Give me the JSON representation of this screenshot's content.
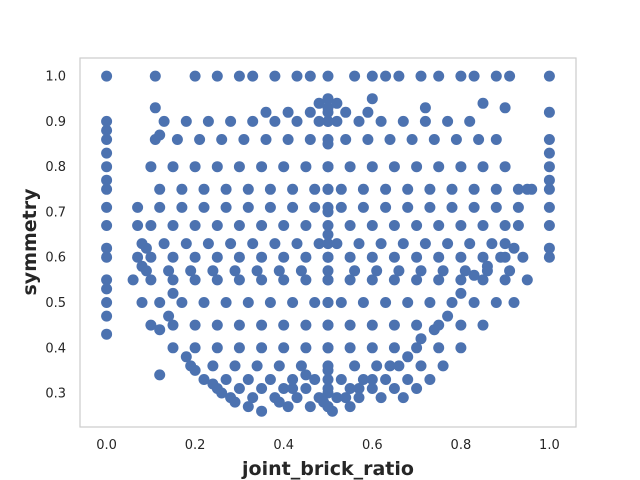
{
  "chart_data": {
    "type": "scatter",
    "title": "",
    "xlabel": "joint_brick_ratio",
    "ylabel": "symmetry",
    "xlim": [
      -0.06,
      1.06
    ],
    "ylim": [
      0.225,
      1.04
    ],
    "x_ticks": [
      0.0,
      0.2,
      0.4,
      0.6,
      0.8,
      1.0
    ],
    "x_tick_labels": [
      "0.0",
      "0.2",
      "0.4",
      "0.6",
      "0.8",
      "1.0"
    ],
    "y_ticks": [
      0.3,
      0.4,
      0.5,
      0.6,
      0.7,
      0.8,
      0.9,
      1.0
    ],
    "y_tick_labels": [
      "0.3",
      "0.4",
      "0.5",
      "0.6",
      "0.7",
      "0.8",
      "0.9",
      "1.0"
    ],
    "grid": false,
    "legend": "none",
    "colors": {
      "series": "#4c72b0",
      "frame": "#cccccc"
    },
    "series": [
      {
        "x": [
          0.0,
          0.0,
          0.0,
          0.0,
          0.0,
          0.0,
          0.0,
          0.0,
          0.0,
          0.0,
          0.0,
          0.0,
          0.0,
          0.0,
          0.0,
          0.0,
          0.0,
          1.0,
          1.0,
          1.0,
          1.0,
          1.0,
          1.0,
          1.0,
          1.0,
          1.0,
          1.0,
          1.0,
          0.11,
          0.2,
          0.25,
          0.3,
          0.33,
          0.38,
          0.43,
          0.46,
          0.5,
          0.56,
          0.6,
          0.63,
          0.66,
          0.71,
          0.75,
          0.8,
          0.83,
          0.88,
          0.91,
          0.07,
          0.1,
          0.15,
          0.2,
          0.25,
          0.3,
          0.35,
          0.4,
          0.45,
          0.5,
          0.55,
          0.6,
          0.65,
          0.7,
          0.75,
          0.8,
          0.85,
          0.9,
          0.93,
          0.07,
          0.1,
          0.15,
          0.2,
          0.25,
          0.3,
          0.35,
          0.4,
          0.45,
          0.5,
          0.55,
          0.6,
          0.65,
          0.7,
          0.75,
          0.8,
          0.85,
          0.9,
          0.94,
          0.12,
          0.17,
          0.22,
          0.27,
          0.32,
          0.37,
          0.42,
          0.47,
          0.5,
          0.53,
          0.58,
          0.63,
          0.68,
          0.73,
          0.78,
          0.83,
          0.88,
          0.93,
          0.96,
          0.1,
          0.15,
          0.2,
          0.25,
          0.3,
          0.35,
          0.4,
          0.45,
          0.5,
          0.55,
          0.6,
          0.65,
          0.7,
          0.75,
          0.8,
          0.85,
          0.9,
          0.06,
          0.1,
          0.15,
          0.2,
          0.25,
          0.3,
          0.35,
          0.4,
          0.45,
          0.5,
          0.55,
          0.6,
          0.65,
          0.7,
          0.75,
          0.8,
          0.85,
          0.9,
          0.95,
          0.08,
          0.12,
          0.17,
          0.22,
          0.27,
          0.32,
          0.37,
          0.42,
          0.47,
          0.5,
          0.53,
          0.58,
          0.63,
          0.68,
          0.73,
          0.78,
          0.83,
          0.88,
          0.92,
          0.07,
          0.12,
          0.17,
          0.22,
          0.27,
          0.32,
          0.37,
          0.42,
          0.47,
          0.5,
          0.53,
          0.58,
          0.63,
          0.68,
          0.73,
          0.78,
          0.83,
          0.88,
          0.93,
          0.09,
          0.14,
          0.19,
          0.24,
          0.29,
          0.34,
          0.39,
          0.44,
          0.5,
          0.56,
          0.61,
          0.66,
          0.71,
          0.76,
          0.81,
          0.86,
          0.91,
          0.08,
          0.13,
          0.18,
          0.23,
          0.28,
          0.33,
          0.38,
          0.43,
          0.48,
          0.5,
          0.52,
          0.57,
          0.62,
          0.67,
          0.72,
          0.77,
          0.82,
          0.87,
          0.9,
          0.11,
          0.16,
          0.21,
          0.26,
          0.31,
          0.36,
          0.41,
          0.46,
          0.5,
          0.54,
          0.59,
          0.64,
          0.69,
          0.74,
          0.79,
          0.84,
          0.88,
          0.1,
          0.15,
          0.2,
          0.25,
          0.3,
          0.35,
          0.4,
          0.45,
          0.5,
          0.55,
          0.6,
          0.65,
          0.7,
          0.75,
          0.8,
          0.85,
          0.13,
          0.18,
          0.23,
          0.28,
          0.33,
          0.38,
          0.43,
          0.48,
          0.5,
          0.52,
          0.57,
          0.62,
          0.67,
          0.72,
          0.77,
          0.82,
          0.15,
          0.2,
          0.25,
          0.3,
          0.35,
          0.4,
          0.45,
          0.5,
          0.55,
          0.6,
          0.65,
          0.7,
          0.75,
          0.8,
          0.19,
          0.24,
          0.29,
          0.34,
          0.39,
          0.44,
          0.5,
          0.56,
          0.61,
          0.66,
          0.71,
          0.76,
          0.22,
          0.27,
          0.32,
          0.37,
          0.42,
          0.47,
          0.5,
          0.53,
          0.58,
          0.63,
          0.68,
          0.73,
          0.25,
          0.3,
          0.35,
          0.4,
          0.45,
          0.5,
          0.55,
          0.6,
          0.65,
          0.7,
          0.28,
          0.33,
          0.38,
          0.43,
          0.48,
          0.52,
          0.57,
          0.62,
          0.67,
          0.36,
          0.41,
          0.46,
          0.5,
          0.54,
          0.59,
          0.41,
          0.46,
          0.5,
          0.55,
          0.08,
          0.09,
          0.12,
          0.12,
          0.11,
          0.14,
          0.15,
          0.18,
          0.2,
          0.24,
          0.26,
          0.29,
          0.32,
          0.35,
          0.39,
          0.42,
          0.45,
          0.5,
          0.54,
          0.57,
          0.6,
          0.64,
          0.68,
          0.71,
          0.74,
          0.77,
          0.8,
          0.83,
          0.86,
          0.89,
          0.92,
          0.95,
          0.12,
          0.6,
          0.72,
          0.85,
          0.9,
          0.5,
          0.5,
          0.5,
          0.5,
          0.5,
          0.5,
          0.5,
          0.5,
          0.5,
          0.5,
          0.5,
          0.5,
          0.5,
          0.5,
          0.5,
          0.5,
          0.48,
          0.52,
          0.51,
          0.49
        ],
        "y": [
          1.0,
          0.9,
          0.88,
          0.86,
          0.83,
          0.8,
          0.77,
          0.75,
          0.71,
          0.67,
          0.62,
          0.6,
          0.55,
          0.53,
          0.5,
          0.47,
          0.43,
          1.0,
          0.92,
          0.86,
          0.83,
          0.8,
          0.77,
          0.75,
          0.71,
          0.67,
          0.62,
          0.6,
          1.0,
          1.0,
          1.0,
          1.0,
          1.0,
          1.0,
          1.0,
          1.0,
          1.0,
          1.0,
          1.0,
          1.0,
          1.0,
          1.0,
          1.0,
          1.0,
          1.0,
          1.0,
          1.0,
          0.67,
          0.67,
          0.67,
          0.67,
          0.67,
          0.67,
          0.67,
          0.67,
          0.67,
          0.67,
          0.67,
          0.67,
          0.67,
          0.67,
          0.67,
          0.67,
          0.67,
          0.67,
          0.67,
          0.6,
          0.6,
          0.6,
          0.6,
          0.6,
          0.6,
          0.6,
          0.6,
          0.6,
          0.6,
          0.6,
          0.6,
          0.6,
          0.6,
          0.6,
          0.6,
          0.6,
          0.6,
          0.6,
          0.75,
          0.75,
          0.75,
          0.75,
          0.75,
          0.75,
          0.75,
          0.75,
          0.75,
          0.75,
          0.75,
          0.75,
          0.75,
          0.75,
          0.75,
          0.75,
          0.75,
          0.75,
          0.75,
          0.8,
          0.8,
          0.8,
          0.8,
          0.8,
          0.8,
          0.8,
          0.8,
          0.8,
          0.8,
          0.8,
          0.8,
          0.8,
          0.8,
          0.8,
          0.8,
          0.8,
          0.55,
          0.55,
          0.55,
          0.55,
          0.55,
          0.55,
          0.55,
          0.55,
          0.55,
          0.55,
          0.55,
          0.55,
          0.55,
          0.55,
          0.55,
          0.55,
          0.55,
          0.55,
          0.55,
          0.5,
          0.5,
          0.5,
          0.5,
          0.5,
          0.5,
          0.5,
          0.5,
          0.5,
          0.5,
          0.5,
          0.5,
          0.5,
          0.5,
          0.5,
          0.5,
          0.5,
          0.5,
          0.5,
          0.71,
          0.71,
          0.71,
          0.71,
          0.71,
          0.71,
          0.71,
          0.71,
          0.71,
          0.71,
          0.71,
          0.71,
          0.71,
          0.71,
          0.71,
          0.71,
          0.71,
          0.71,
          0.71,
          0.57,
          0.57,
          0.57,
          0.57,
          0.57,
          0.57,
          0.57,
          0.57,
          0.57,
          0.57,
          0.57,
          0.57,
          0.57,
          0.57,
          0.57,
          0.57,
          0.57,
          0.63,
          0.63,
          0.63,
          0.63,
          0.63,
          0.63,
          0.63,
          0.63,
          0.63,
          0.63,
          0.63,
          0.63,
          0.63,
          0.63,
          0.63,
          0.63,
          0.63,
          0.63,
          0.63,
          0.86,
          0.86,
          0.86,
          0.86,
          0.86,
          0.86,
          0.86,
          0.86,
          0.86,
          0.86,
          0.86,
          0.86,
          0.86,
          0.86,
          0.86,
          0.86,
          0.86,
          0.45,
          0.45,
          0.45,
          0.45,
          0.45,
          0.45,
          0.45,
          0.45,
          0.45,
          0.45,
          0.45,
          0.45,
          0.45,
          0.45,
          0.45,
          0.45,
          0.9,
          0.9,
          0.9,
          0.9,
          0.9,
          0.9,
          0.9,
          0.9,
          0.9,
          0.9,
          0.9,
          0.9,
          0.9,
          0.9,
          0.9,
          0.9,
          0.4,
          0.4,
          0.4,
          0.4,
          0.4,
          0.4,
          0.4,
          0.4,
          0.4,
          0.4,
          0.4,
          0.4,
          0.4,
          0.4,
          0.36,
          0.36,
          0.36,
          0.36,
          0.36,
          0.36,
          0.36,
          0.36,
          0.36,
          0.36,
          0.36,
          0.36,
          0.33,
          0.33,
          0.33,
          0.33,
          0.33,
          0.33,
          0.33,
          0.33,
          0.33,
          0.33,
          0.33,
          0.33,
          0.31,
          0.31,
          0.31,
          0.31,
          0.31,
          0.31,
          0.31,
          0.31,
          0.31,
          0.31,
          0.29,
          0.29,
          0.29,
          0.29,
          0.29,
          0.29,
          0.29,
          0.29,
          0.29,
          0.92,
          0.92,
          0.92,
          0.92,
          0.92,
          0.92,
          0.27,
          0.27,
          0.27,
          0.27,
          0.58,
          0.62,
          0.44,
          0.87,
          0.93,
          0.47,
          0.52,
          0.38,
          0.35,
          0.32,
          0.3,
          0.28,
          0.27,
          0.26,
          0.28,
          0.31,
          0.34,
          0.27,
          0.29,
          0.31,
          0.33,
          0.36,
          0.38,
          0.42,
          0.44,
          0.47,
          0.52,
          0.56,
          0.58,
          0.6,
          0.62,
          0.75,
          0.34,
          0.95,
          0.93,
          0.94,
          0.93,
          0.27,
          0.3,
          0.35,
          0.4,
          0.45,
          0.5,
          0.55,
          0.6,
          0.65,
          0.7,
          0.75,
          0.8,
          0.85,
          0.9,
          0.93,
          0.95,
          0.94,
          0.94,
          0.26,
          0.28
        ]
      }
    ]
  }
}
